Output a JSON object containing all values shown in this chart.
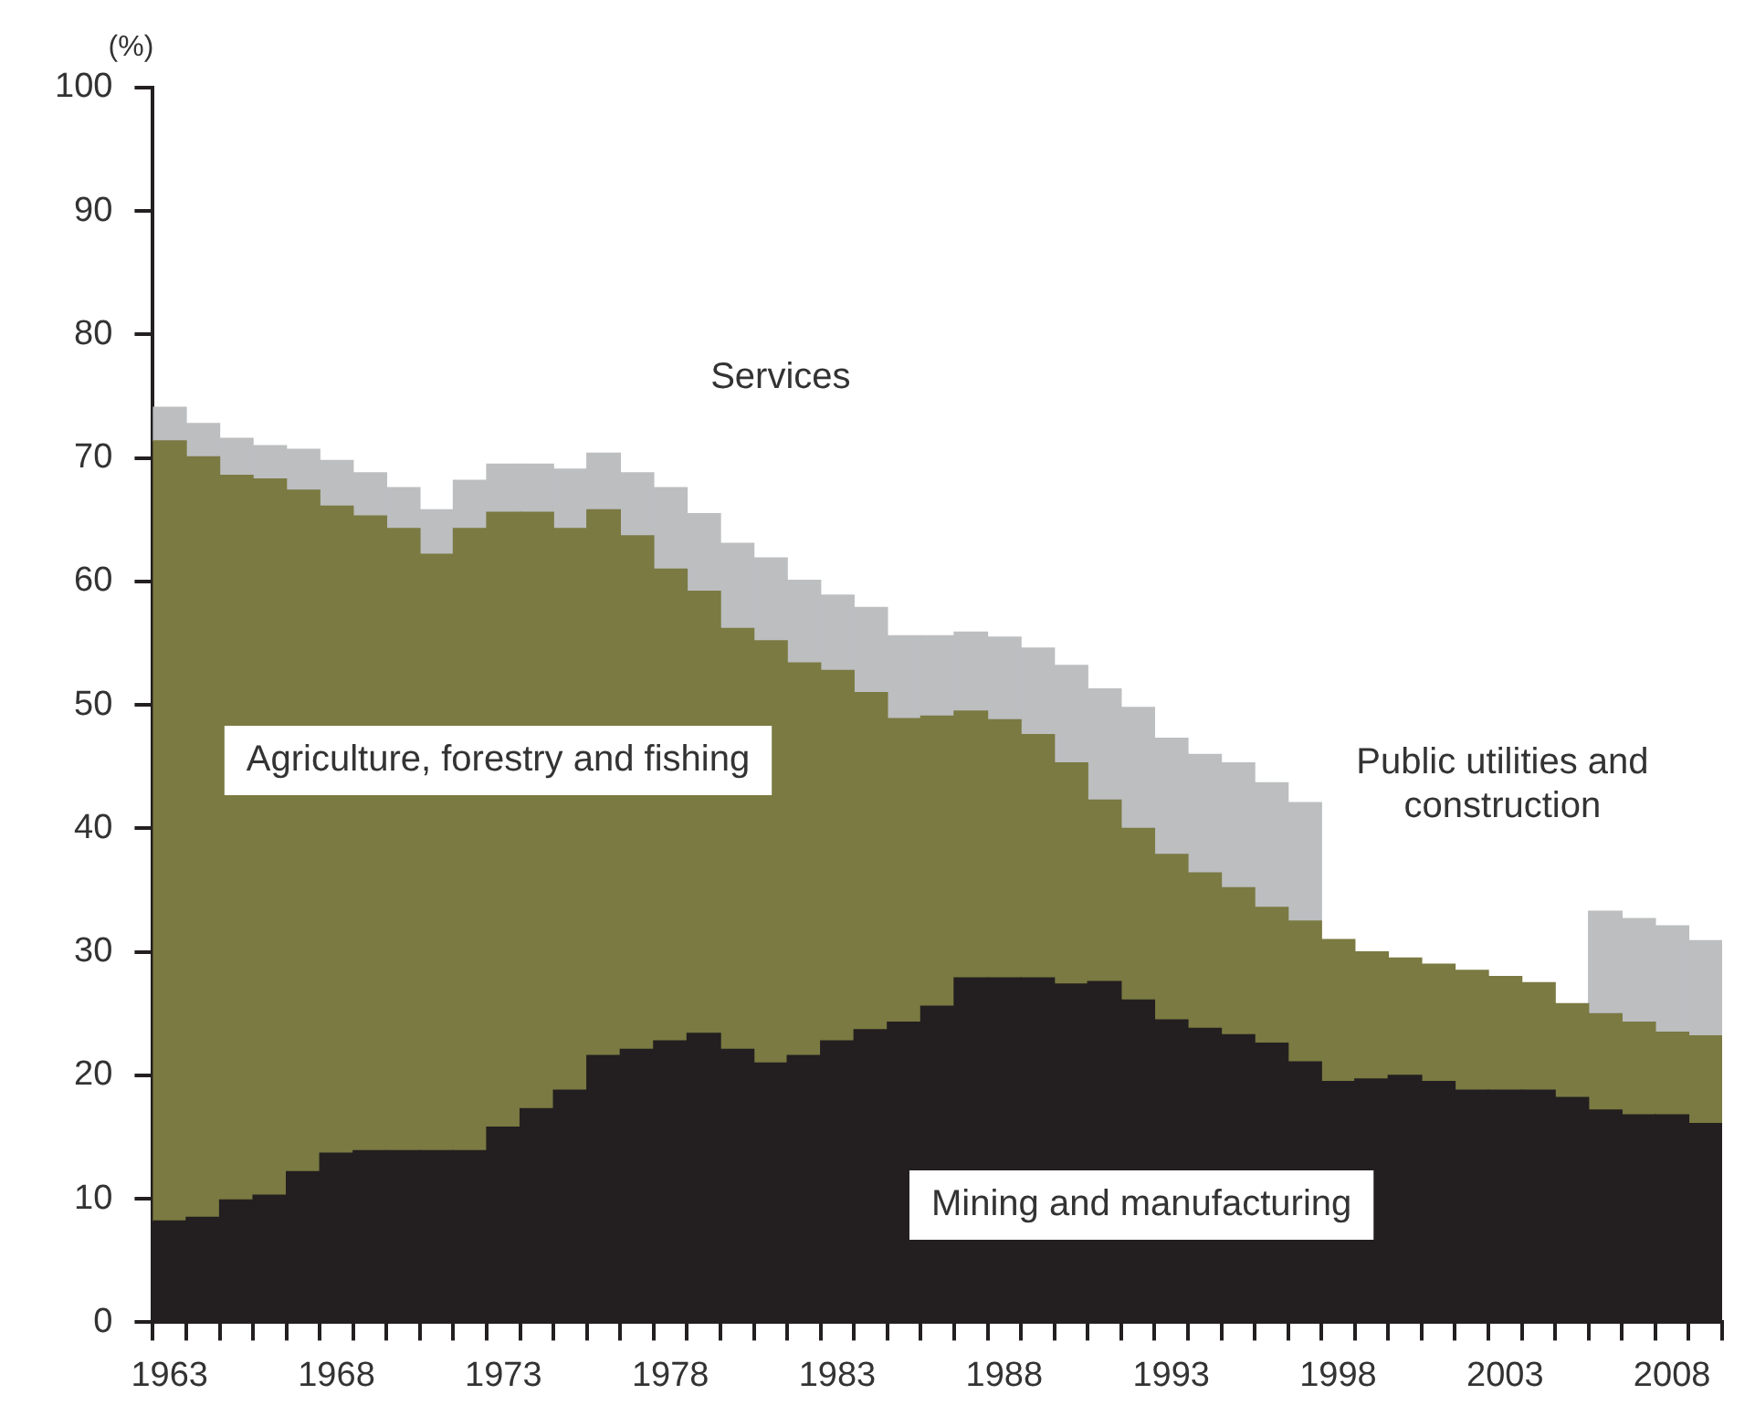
{
  "chart_data": {
    "type": "bar",
    "stacked": true,
    "ylabel": "(%)",
    "categories": [
      "1963",
      null,
      null,
      null,
      null,
      "1968",
      null,
      null,
      null,
      null,
      "1973",
      null,
      null,
      null,
      null,
      "1978",
      null,
      null,
      null,
      null,
      "1983",
      null,
      null,
      null,
      null,
      "1988",
      null,
      null,
      null,
      null,
      "1993",
      null,
      null,
      null,
      null,
      "1998",
      null,
      null,
      null,
      null,
      "2003",
      null,
      null,
      null,
      null,
      "2008",
      null
    ],
    "ylim": [
      0,
      100
    ],
    "yticks": [
      0,
      10,
      20,
      30,
      40,
      50,
      60,
      70,
      80,
      90,
      100
    ],
    "grid": false,
    "legend": false,
    "series": [
      {
        "name": "Mining and manufacturing",
        "color": "#231f20",
        "values": [
          8.2,
          8.5,
          9.9,
          10.3,
          12.2,
          13.7,
          13.9,
          13.9,
          13.9,
          13.9,
          15.8,
          17.3,
          18.8,
          21.6,
          22.1,
          22.8,
          23.4,
          22.1,
          21.0,
          21.6,
          22.8,
          23.7,
          24.3,
          25.6,
          27.9,
          27.9,
          27.9,
          27.4,
          27.6,
          26.1,
          24.5,
          23.8,
          23.3,
          22.6,
          21.1,
          19.5,
          19.7,
          20.0,
          19.5,
          18.8,
          18.8,
          18.8,
          18.2,
          17.2,
          16.8,
          16.8,
          16.1
        ]
      },
      {
        "name": "Agriculture, forestry and fishing",
        "color": "#7a7a42",
        "values": [
          63.2,
          61.6,
          58.7,
          58.0,
          55.2,
          52.4,
          51.4,
          50.4,
          48.3,
          50.4,
          49.8,
          48.3,
          45.5,
          44.2,
          41.6,
          38.2,
          35.8,
          34.1,
          34.2,
          31.8,
          30.0,
          27.3,
          24.6,
          23.5,
          21.6,
          20.9,
          19.7,
          17.9,
          14.7,
          13.9,
          13.4,
          12.6,
          11.9,
          11.0,
          11.4,
          11.5,
          10.3,
          9.5,
          9.5,
          9.7,
          9.2,
          8.7,
          7.6,
          7.8,
          7.5,
          6.7,
          7.1
        ]
      },
      {
        "name": "Public utilities and construction",
        "color": "#bcbec0",
        "values": [
          2.7,
          2.7,
          3.0,
          2.7,
          3.3,
          3.7,
          3.5,
          3.3,
          3.6,
          3.9,
          3.9,
          3.9,
          4.8,
          4.6,
          5.1,
          6.6,
          6.3,
          6.9,
          6.7,
          6.7,
          6.1,
          6.9,
          6.7,
          6.5,
          6.4,
          6.7,
          7.0,
          7.9,
          9.0,
          9.8,
          9.4,
          9.6,
          10.1,
          10.1,
          9.6,
          null,
          null,
          null,
          null,
          null,
          null,
          null,
          null,
          8.3,
          8.4,
          8.6,
          7.7
        ]
      }
    ],
    "annotations": [
      "Services"
    ]
  }
}
